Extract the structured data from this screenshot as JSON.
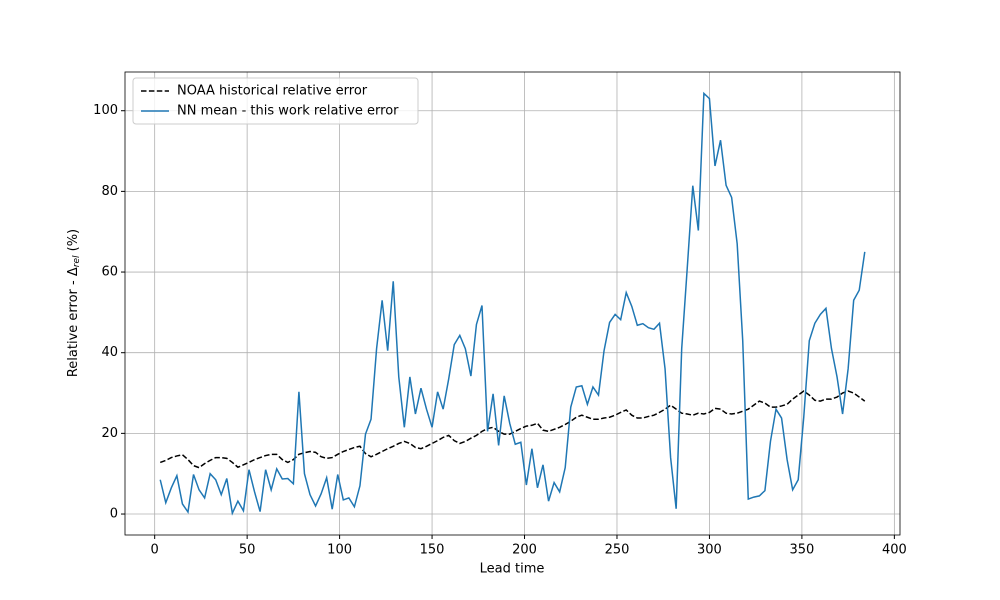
{
  "chart_data": {
    "type": "line",
    "xlabel": "Lead time",
    "ylabel": {
      "main": "Relative error - Δ",
      "sub": "rel",
      "tail": " (%)"
    },
    "x": [
      3,
      6,
      9,
      12,
      15,
      18,
      21,
      24,
      27,
      30,
      33,
      36,
      39,
      42,
      45,
      48,
      51,
      54,
      57,
      60,
      63,
      66,
      69,
      72,
      75,
      78,
      81,
      84,
      87,
      90,
      93,
      96,
      99,
      102,
      105,
      108,
      111,
      114,
      117,
      120,
      123,
      126,
      129,
      132,
      135,
      138,
      141,
      144,
      147,
      150,
      153,
      156,
      159,
      162,
      165,
      168,
      171,
      174,
      177,
      180,
      183,
      186,
      189,
      192,
      195,
      198,
      201,
      204,
      207,
      210,
      213,
      216,
      219,
      222,
      225,
      228,
      231,
      234,
      237,
      240,
      243,
      246,
      249,
      252,
      255,
      258,
      261,
      264,
      267,
      270,
      273,
      276,
      279,
      282,
      285,
      288,
      291,
      294,
      297,
      300,
      303,
      306,
      309,
      312,
      315,
      318,
      321,
      324,
      327,
      330,
      333,
      336,
      339,
      342,
      345,
      348,
      351,
      354,
      357,
      360,
      363,
      366,
      369,
      372,
      375,
      378,
      381,
      384
    ],
    "series": [
      {
        "name": "NOAA historical relative error",
        "color": "#000000",
        "dashed": true,
        "values": [
          12.8,
          13.3,
          14,
          14.4,
          14.7,
          13.5,
          12,
          11.5,
          12.5,
          13.3,
          14,
          14,
          13.8,
          12.8,
          11.6,
          12.2,
          12.8,
          13.5,
          14,
          14.5,
          14.8,
          14.8,
          13.5,
          12.8,
          13.5,
          14.8,
          15.2,
          15.5,
          15.3,
          14.2,
          13.8,
          14,
          14.8,
          15.5,
          16,
          16.5,
          16.8,
          15,
          14.2,
          14.8,
          15.5,
          16.2,
          16.8,
          17.5,
          18,
          17.5,
          16.5,
          16.2,
          16.8,
          17.5,
          18.2,
          19,
          19.5,
          18.2,
          17.5,
          18,
          18.8,
          19.5,
          20.5,
          21.2,
          21.5,
          20.5,
          19.8,
          19.8,
          20.5,
          21.2,
          21.8,
          22,
          22.5,
          20.8,
          20.5,
          21,
          21.5,
          22.2,
          23,
          24,
          24.5,
          24,
          23.5,
          23.5,
          23.8,
          24,
          24.5,
          25.2,
          25.8,
          24.5,
          23.8,
          23.8,
          24.2,
          24.5,
          25.2,
          26,
          27,
          26,
          25,
          24.8,
          24.5,
          25,
          24.8,
          25.2,
          26.2,
          26,
          25,
          24.8,
          25,
          25.5,
          26,
          27,
          28,
          27.5,
          26.5,
          26.5,
          26.8,
          27.2,
          28.5,
          29.5,
          30.5,
          29.5,
          28.2,
          28,
          28.5,
          28.5,
          29,
          30,
          30.5,
          30,
          29,
          28
        ]
      },
      {
        "name": "NN mean - this work relative error",
        "color": "#1f77b4",
        "dashed": false,
        "values": [
          8.5,
          2.8,
          6.5,
          9.5,
          2.5,
          0.5,
          9.8,
          6,
          4,
          10,
          8.5,
          4.8,
          8.8,
          0.2,
          3.2,
          0.8,
          11,
          5.5,
          0.6,
          11,
          6,
          11.2,
          8.7,
          8.8,
          7.5,
          30.3,
          10,
          4.8,
          2,
          5,
          9,
          1.2,
          9.8,
          3.5,
          4,
          1.8,
          7,
          19.8,
          23.5,
          41,
          53,
          40.5,
          57.7,
          34,
          21.5,
          34,
          24.8,
          31.2,
          26,
          21.5,
          30.3,
          26,
          33.5,
          42,
          44.3,
          41,
          34.2,
          47,
          51.7,
          20.5,
          29.8,
          17,
          29.3,
          22.5,
          17.3,
          17.8,
          7.2,
          16.2,
          6.5,
          12.2,
          3.2,
          7.8,
          5.5,
          11.5,
          26.5,
          31.5,
          31.8,
          27.2,
          31.5,
          29.5,
          40.5,
          47.5,
          49.5,
          48.2,
          54.9,
          51.5,
          46.8,
          47.2,
          46.2,
          45.8,
          47.3,
          36,
          14,
          1.3,
          41,
          61,
          81.4,
          70.3,
          104.3,
          103,
          86.3,
          92.7,
          81.5,
          78.5,
          67,
          43,
          3.7,
          4.2,
          4.5,
          5.8,
          18,
          26,
          23.8,
          13.5,
          6,
          8.5,
          24,
          43,
          47.3,
          49.5,
          51,
          41,
          34,
          24.8,
          36,
          53,
          55.5,
          65
        ]
      }
    ],
    "xlim": [
      -16.05,
      403.05
    ],
    "ylim": [
      -5.2,
      109.6
    ],
    "xticks": [
      0,
      50,
      100,
      150,
      200,
      250,
      300,
      350,
      400
    ],
    "yticks": [
      0,
      20,
      40,
      60,
      80,
      100
    ],
    "grid": true,
    "legend": "upper left"
  }
}
